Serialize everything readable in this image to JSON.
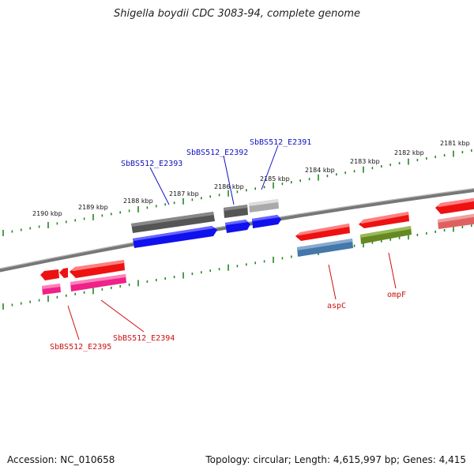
{
  "title": "Shigella boydii CDC 3083-94, complete genome",
  "footer": {
    "accession": "Accession: NC_010658",
    "summary": "Topology: circular; Length: 4,615,997 bp; Genes: 4,415"
  },
  "scale_labels": [
    "2181 kbp",
    "2182 kbp",
    "2183 kbp",
    "2184 kbp",
    "2185 kbp",
    "2186 kbp",
    "2187 kbp",
    "2188 kbp",
    "2189 kbp",
    "2190 kbp"
  ],
  "gene_labels": {
    "e2391": "SbBS512_E2391",
    "e2392": "SbBS512_E2392",
    "e2393": "SbBS512_E2393",
    "e2394": "SbBS512_E2394",
    "e2395": "SbBS512_E2395",
    "aspc": "aspC",
    "ompf": "ompF"
  },
  "colors": {
    "backbone": "#808080",
    "ticks": "#228822",
    "blue_label": "#1010c0",
    "red_label": "#cc1010",
    "cds_red": "#ee1111",
    "cds_blue": "#1111ee",
    "cds_gray": "#666666",
    "cds_lightgray": "#aaaaaa",
    "cds_pink": "#ee2288",
    "cds_steel": "#4477aa",
    "cds_olive": "#668822",
    "cds_salmon": "#e06060"
  }
}
